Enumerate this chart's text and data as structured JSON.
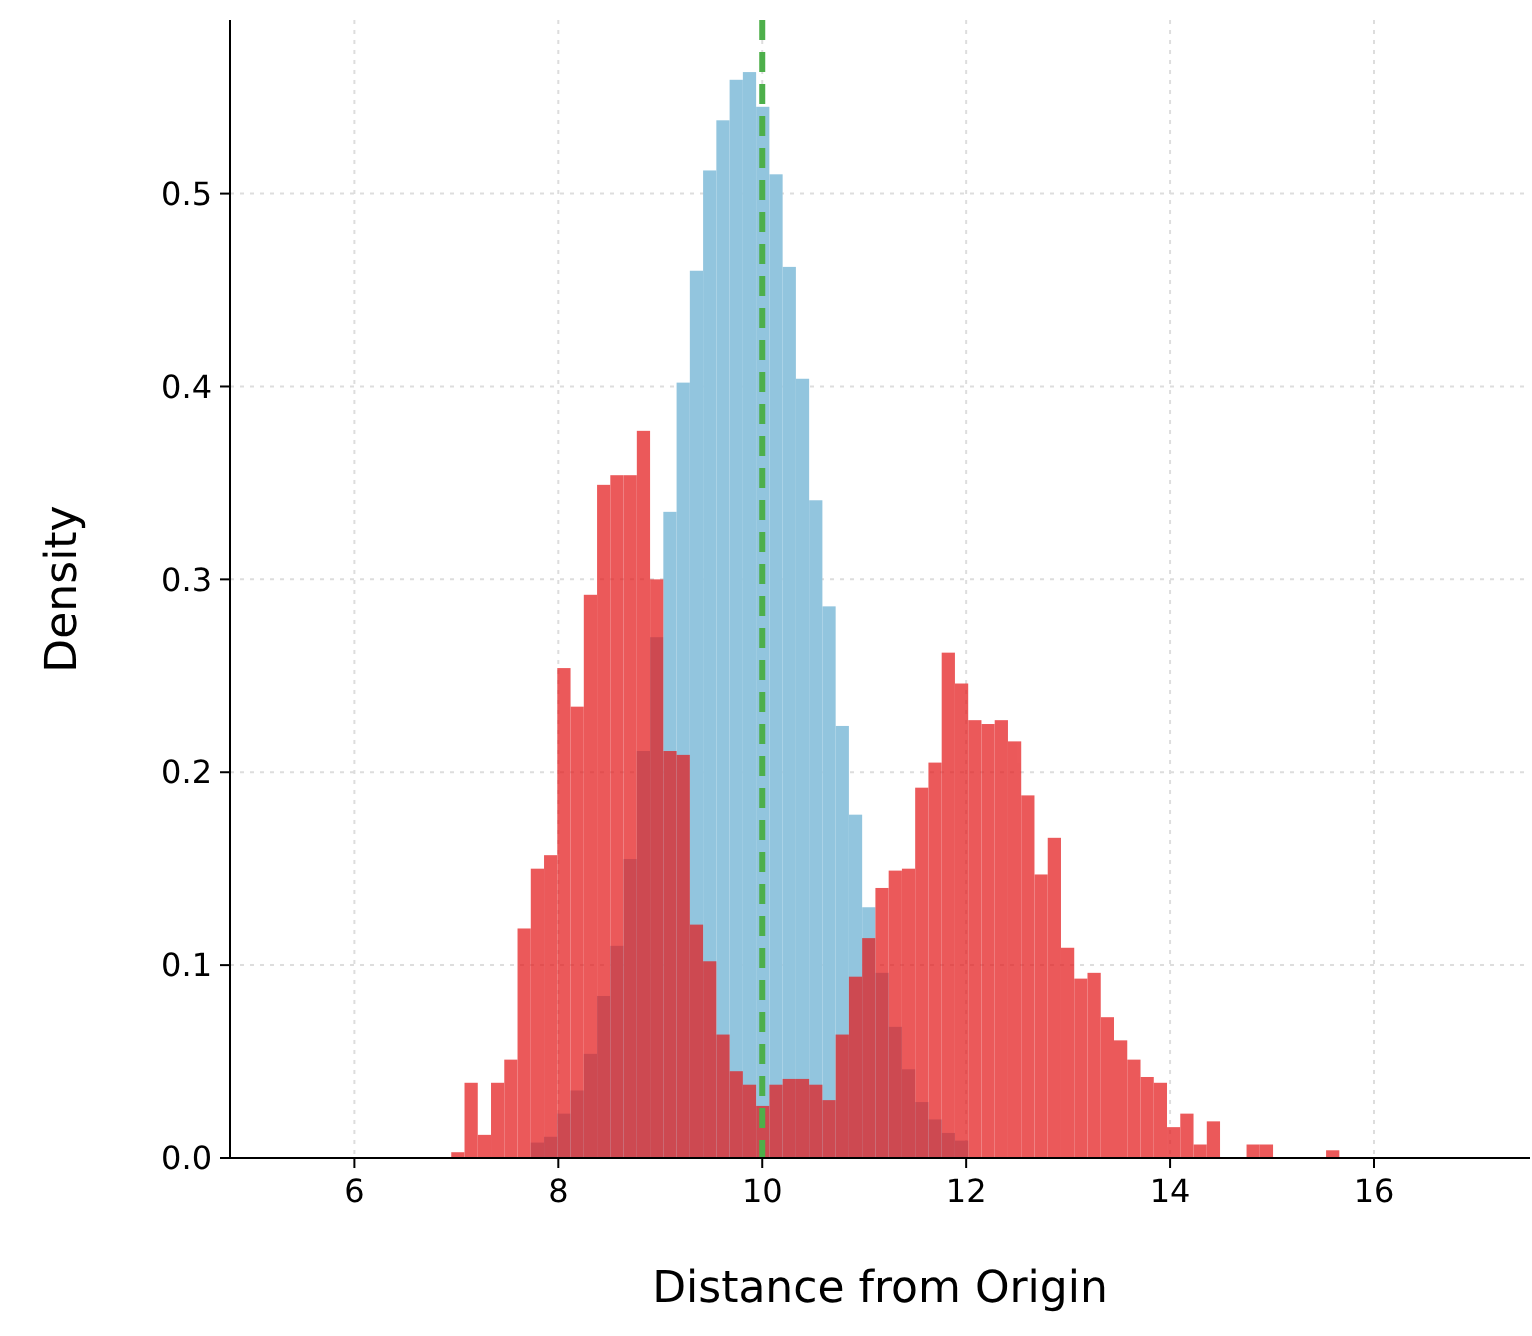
{
  "chart_data": {
    "type": "histogram",
    "xlabel": "Distance from Origin",
    "ylabel": "Density",
    "bins": [
      6.95,
      7.08,
      7.21,
      7.34,
      7.47,
      7.6,
      7.73,
      7.86,
      7.99,
      8.12,
      8.25,
      8.38,
      8.51,
      8.64,
      8.77,
      8.9,
      9.03,
      9.16,
      9.29,
      9.42,
      9.55,
      9.68,
      9.81,
      9.94,
      10.07,
      10.2,
      10.33,
      10.46,
      10.59,
      10.72,
      10.85,
      10.98,
      11.11,
      11.24,
      11.37,
      11.5,
      11.63,
      11.76,
      11.89,
      12.02,
      12.15,
      12.28,
      12.41,
      12.54,
      12.67,
      12.8,
      12.93,
      13.06,
      13.19,
      13.32,
      13.45,
      13.58,
      13.71,
      13.84,
      13.97,
      14.1,
      14.23,
      14.36,
      14.49,
      14.62,
      14.75,
      14.88,
      15.01,
      15.14,
      15.27,
      15.4,
      15.53,
      15.66
    ],
    "series": [
      {
        "color": "#92c5de",
        "values": [
          0,
          0,
          0,
          0,
          0,
          null,
          0.008,
          0.011,
          0.023,
          0.035,
          0.054,
          0.084,
          0.11,
          0.155,
          0.211,
          0.27,
          0.335,
          0.402,
          0.46,
          0.512,
          0.538,
          0.559,
          0.563,
          0.545,
          0.51,
          0.462,
          0.404,
          0.341,
          0.286,
          0.224,
          0.178,
          0.13,
          0.096,
          0.068,
          0.046,
          0.029,
          0.02,
          0.013,
          0.009,
          null,
          null,
          null,
          0,
          0,
          0,
          0,
          0,
          0,
          0,
          0,
          0,
          0,
          0,
          0,
          0,
          0,
          0,
          0,
          0,
          0,
          0,
          0,
          0,
          0,
          0,
          0,
          0
        ]
      },
      {
        "color": "#e41a1c",
        "values": [
          0.003,
          0.039,
          0.012,
          0.039,
          0.051,
          0.119,
          0.15,
          0.157,
          0.254,
          0.234,
          0.292,
          0.349,
          0.354,
          0.354,
          0.377,
          0.3,
          0.211,
          0.209,
          0.121,
          0.102,
          0.064,
          0.045,
          0.038,
          0.027,
          0.038,
          0.041,
          0.041,
          0.038,
          0.03,
          0.064,
          0.094,
          0.114,
          0.14,
          0.149,
          0.15,
          0.192,
          0.205,
          0.262,
          0.246,
          0.227,
          0.225,
          0.227,
          0.216,
          0.188,
          0.147,
          0.166,
          0.109,
          0.093,
          0.096,
          0.073,
          0.061,
          0.051,
          0.042,
          0.039,
          0.016,
          0.023,
          0.007,
          0.019,
          0,
          0,
          0.007,
          0.007,
          0,
          0,
          0,
          0,
          0.004
        ]
      }
    ],
    "ref_lines": [
      {
        "axis": "x",
        "value": 10,
        "color": "#4daf4a",
        "line_style": "dashed"
      }
    ],
    "xlim": [
      4.78,
      17.53
    ],
    "xticks": [
      6,
      8,
      10,
      12,
      14,
      16
    ],
    "ylim": [
      0,
      0.59
    ],
    "yticks": [
      {
        "value": 0,
        "label": "0.0"
      },
      {
        "value": 0.1,
        "label": "0.1"
      },
      {
        "value": 0.2,
        "label": "0.2"
      },
      {
        "value": 0.3,
        "label": "0.3"
      },
      {
        "value": 0.4,
        "label": "0.4"
      },
      {
        "value": 0.5,
        "label": "0.5"
      }
    ],
    "grid": true
  }
}
